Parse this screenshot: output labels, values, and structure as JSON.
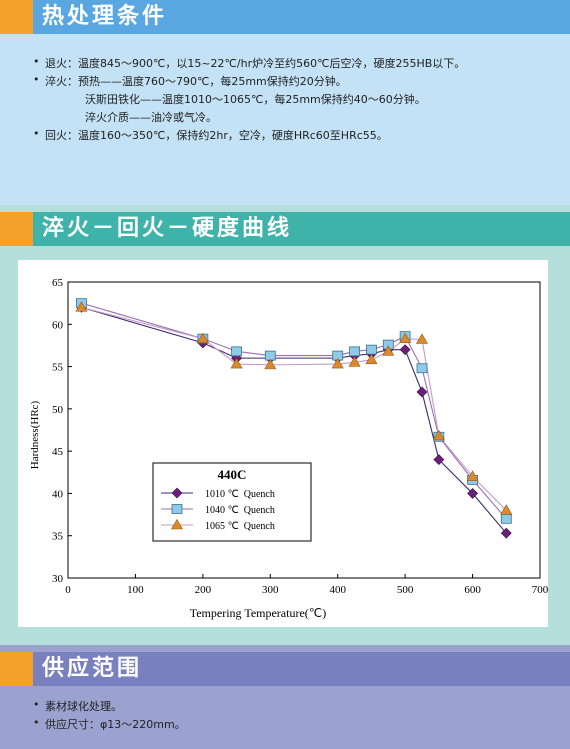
{
  "sections": {
    "heat_treatment": {
      "title": "热处理条件",
      "lines": [
        {
          "bullet": true,
          "text": "退火：温度845～900℃，以15~22℃/hr炉冷至约560℃后空冷，硬度255HB以下。"
        },
        {
          "bullet": true,
          "text": "淬火：预热——温度760～790℃，每25mm保持约20分钟。"
        },
        {
          "bullet": false,
          "text": "沃斯田铁化——温度1010～1065℃，每25mm保持约40～60分钟。"
        },
        {
          "bullet": false,
          "text": "淬火介质——油冷或气冷。"
        },
        {
          "bullet": true,
          "text": "回火：温度160～350℃，保持约2hr，空冷，硬度HRc60至HRc55。"
        }
      ]
    },
    "curve": {
      "title": "淬火－回火－硬度曲线"
    },
    "supply": {
      "title": "供应范围",
      "lines": [
        {
          "bullet": true,
          "text": "素材球化处理。"
        },
        {
          "bullet": true,
          "text": "供应尺寸：φ13～220mm。"
        }
      ]
    }
  },
  "colors": {
    "series_1010": "#6a1f7a",
    "series_1040": "#8dcbe8",
    "series_1065": "#d98a2c",
    "accent_square": "#f3a12a"
  },
  "chart_data": {
    "type": "line",
    "xlabel": "Tempering Temperature(℃)",
    "ylabel": "Hardness(HRc)",
    "xlim": [
      0,
      700
    ],
    "ylim": [
      30,
      65
    ],
    "x_ticks": [
      0,
      100,
      200,
      300,
      400,
      500,
      600,
      700
    ],
    "y_ticks": [
      30,
      35,
      40,
      45,
      50,
      55,
      60,
      65
    ],
    "legend_title": "440C",
    "legend_position": "center-left",
    "series": [
      {
        "name": "1010 ℃  Quench",
        "marker": "diamond",
        "x": [
          20,
          200,
          250,
          300,
          400,
          425,
          450,
          475,
          500,
          525,
          550,
          600,
          650
        ],
        "y": [
          62.0,
          57.8,
          56.0,
          56.0,
          56.0,
          56.3,
          56.5,
          57.0,
          57.0,
          52.0,
          44.0,
          40.0,
          35.3
        ]
      },
      {
        "name": "1040 ℃  Quench",
        "marker": "square",
        "x": [
          20,
          200,
          250,
          300,
          400,
          425,
          450,
          475,
          500,
          525,
          550,
          600,
          650
        ],
        "y": [
          62.5,
          58.3,
          56.8,
          56.3,
          56.3,
          56.8,
          57.0,
          57.6,
          58.6,
          54.8,
          46.7,
          41.6,
          37.0
        ]
      },
      {
        "name": "1065 ℃  Quench",
        "marker": "triangle",
        "x": [
          20,
          200,
          250,
          300,
          400,
          425,
          450,
          475,
          500,
          525,
          550,
          600,
          650
        ],
        "y": [
          62.0,
          58.3,
          55.3,
          55.2,
          55.3,
          55.5,
          55.8,
          56.8,
          58.3,
          58.2,
          46.8,
          42.0,
          38.0
        ]
      }
    ]
  }
}
